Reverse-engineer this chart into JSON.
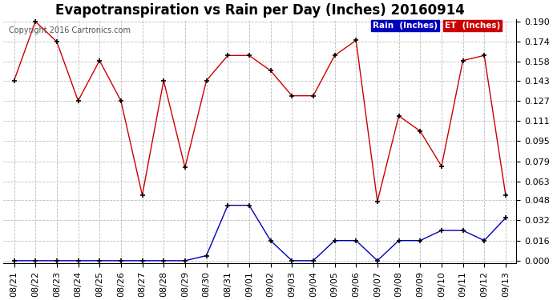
{
  "title": "Evapotranspiration vs Rain per Day (Inches) 20160914",
  "copyright": "Copyright 2016 Cartronics.com",
  "dates": [
    "08/21",
    "08/22",
    "08/23",
    "08/24",
    "08/25",
    "08/26",
    "08/27",
    "08/28",
    "08/29",
    "08/30",
    "08/31",
    "09/01",
    "09/02",
    "09/03",
    "09/04",
    "09/05",
    "09/06",
    "09/07",
    "09/08",
    "09/09",
    "09/10",
    "09/11",
    "09/12",
    "09/13"
  ],
  "rain": [
    0.0,
    0.0,
    0.0,
    0.0,
    0.0,
    0.0,
    0.0,
    0.0,
    0.0,
    0.004,
    0.044,
    0.044,
    0.016,
    0.0,
    0.0,
    0.016,
    0.016,
    0.0,
    0.016,
    0.016,
    0.024,
    0.024,
    0.016,
    0.034
  ],
  "et": [
    0.143,
    0.19,
    0.174,
    0.127,
    0.159,
    0.127,
    0.052,
    0.143,
    0.074,
    0.143,
    0.163,
    0.163,
    0.151,
    0.131,
    0.131,
    0.163,
    0.175,
    0.047,
    0.115,
    0.103,
    0.075,
    0.159,
    0.163,
    0.052
  ],
  "rain_color": "#0000bb",
  "et_color": "#cc0000",
  "marker_color": "#000000",
  "ylim_min": 0.0,
  "ylim_max": 0.19,
  "yticks": [
    0.0,
    0.016,
    0.032,
    0.048,
    0.063,
    0.079,
    0.095,
    0.111,
    0.127,
    0.143,
    0.158,
    0.174,
    0.19
  ],
  "background_color": "#ffffff",
  "grid_color": "#bbbbbb",
  "title_fontsize": 12,
  "tick_fontsize": 8,
  "legend_rain_label": "Rain  (Inches)",
  "legend_et_label": "ET  (Inches)",
  "legend_rain_bg": "#0000bb",
  "legend_et_bg": "#cc0000"
}
